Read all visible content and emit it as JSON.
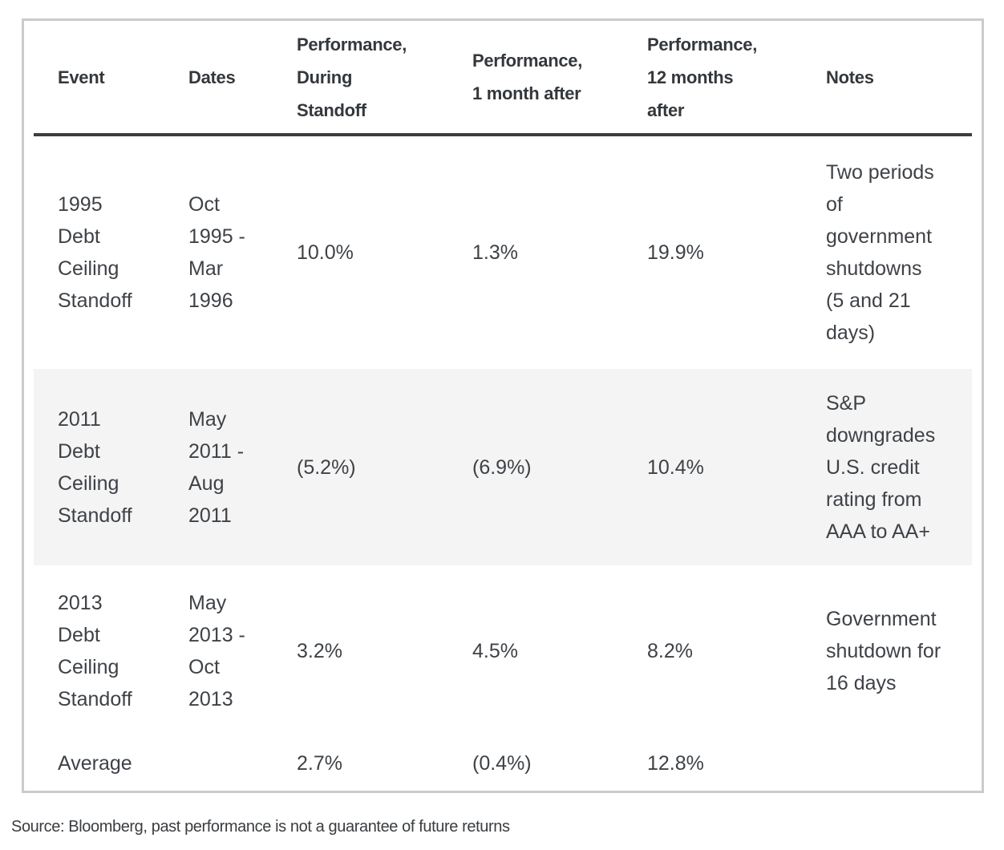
{
  "colors": {
    "background": "#ffffff",
    "text": "#3e4247",
    "heading_text": "#34383c",
    "table_border": "#cbcbcb",
    "header_rule": "#3d3d3d",
    "row_shading": "#f4f4f4"
  },
  "table": {
    "headers": [
      "Event",
      "Dates",
      "Performance,\nDuring\nStandoff",
      "Performance,\n1 month after",
      "Performance,\n12 months\nafter",
      "Notes"
    ],
    "rows": [
      {
        "event": "1995\nDebt\nCeiling\nStandoff",
        "dates": "Oct\n1995 -\nMar\n1996",
        "during": "10.0%",
        "one_month": "1.3%",
        "twelve_months": "19.9%",
        "notes": "Two periods\nof\ngovernment\nshutdowns\n(5 and 21\ndays)"
      },
      {
        "event": "2011\nDebt\nCeiling\nStandoff",
        "dates": "May\n2011 -\nAug\n2011",
        "during": "(5.2%)",
        "one_month": "(6.9%)",
        "twelve_months": "10.4%",
        "notes": "S&P\ndowngrades\nU.S. credit\nrating from\nAAA to AA+"
      },
      {
        "event": "2013\nDebt\nCeiling\nStandoff",
        "dates": "May\n2013 -\nOct\n2013",
        "during": "3.2%",
        "one_month": "4.5%",
        "twelve_months": "8.2%",
        "notes": "Government\nshutdown for\n16 days"
      }
    ],
    "average_row": {
      "label": "Average",
      "during": "2.7%",
      "one_month": "(0.4%)",
      "twelve_months": "12.8%"
    }
  },
  "footer": {
    "source_note": "Source: Bloomberg, past performance is not a guarantee of future returns"
  },
  "chart_data": {
    "type": "table",
    "columns": [
      "Event",
      "Dates",
      "Performance, During Standoff",
      "Performance, 1 month after",
      "Performance, 12 months after",
      "Notes"
    ],
    "rows": [
      [
        "1995 Debt Ceiling Standoff",
        "Oct 1995 - Mar 1996",
        "10.0%",
        "1.3%",
        "19.9%",
        "Two periods of government shutdowns (5 and 21 days)"
      ],
      [
        "2011 Debt Ceiling Standoff",
        "May 2011 - Aug 2011",
        "(5.2%)",
        "(6.9%)",
        "10.4%",
        "S&P downgrades U.S. credit rating from AAA to AA+"
      ],
      [
        "2013 Debt Ceiling Standoff",
        "May 2013 - Oct 2013",
        "3.2%",
        "4.5%",
        "8.2%",
        "Government shutdown for 16 days"
      ],
      [
        "Average",
        "",
        "2.7%",
        "(0.4%)",
        "12.8%",
        ""
      ]
    ],
    "numeric_values": {
      "during_standoff_pct": [
        10.0,
        -5.2,
        3.2
      ],
      "one_month_after_pct": [
        1.3,
        -6.9,
        4.5
      ],
      "twelve_months_after_pct": [
        19.9,
        10.4,
        8.2
      ],
      "average_pct": {
        "during_standoff": 2.7,
        "one_month_after": -0.4,
        "twelve_months_after": 12.8
      }
    },
    "highlighted_row_index": 1,
    "source": "Source: Bloomberg, past performance is not a guarantee of future returns"
  }
}
